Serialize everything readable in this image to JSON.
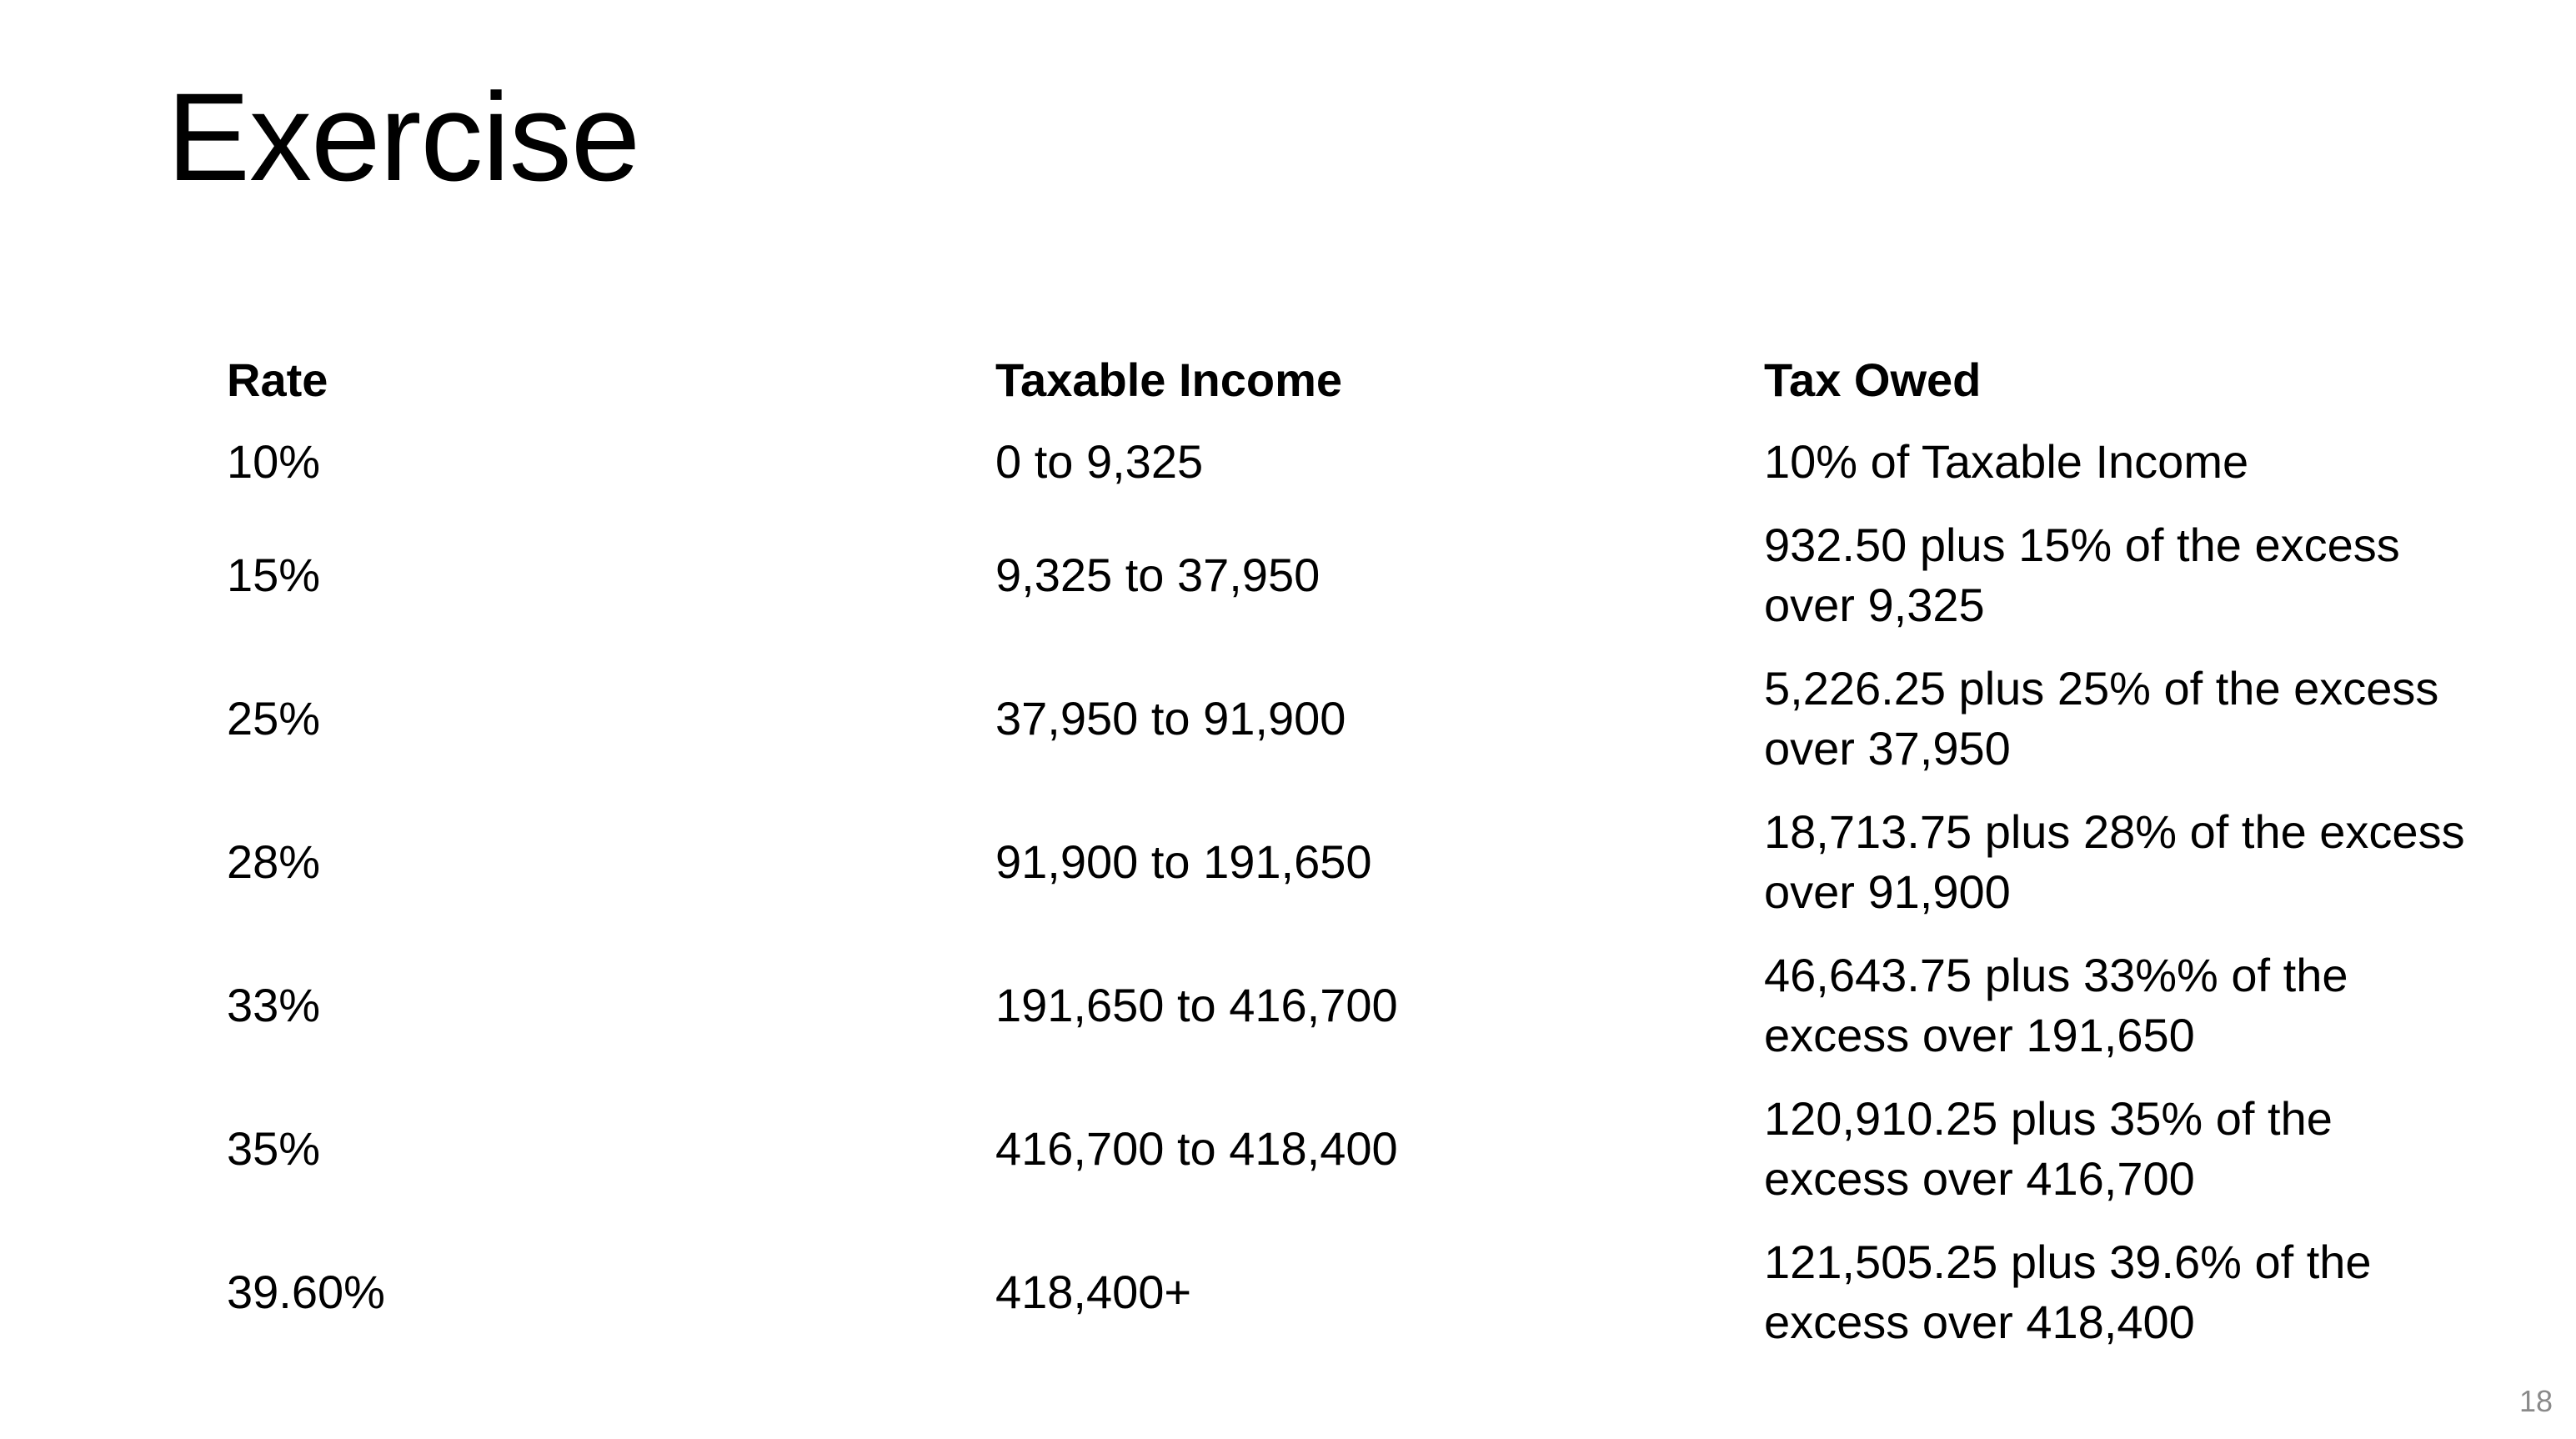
{
  "slide": {
    "title": "Exercise",
    "page_number": "18"
  },
  "table": {
    "headers": [
      "Rate",
      "Taxable Income",
      "Tax Owed"
    ],
    "rows": [
      {
        "rate": "10%",
        "income": "0 to 9,325",
        "owed": "10% of Taxable Income"
      },
      {
        "rate": "15%",
        "income": "9,325 to 37,950",
        "owed": "932.50 plus 15% of the excess over 9,325"
      },
      {
        "rate": "25%",
        "income": "37,950 to 91,900",
        "owed": "5,226.25 plus 25% of the excess over 37,950"
      },
      {
        "rate": "28%",
        "income": "91,900 to 191,650",
        "owed": "18,713.75 plus 28% of the excess over 91,900"
      },
      {
        "rate": "33%",
        "income": "191,650 to 416,700",
        "owed": "46,643.75 plus 33%% of the excess over 191,650"
      },
      {
        "rate": "35%",
        "income": "416,700 to 418,400",
        "owed": "120,910.25 plus 35% of the excess over 416,700"
      },
      {
        "rate": "39.60%",
        "income": "418,400+",
        "owed": "121,505.25 plus 39.6% of the excess over 418,400"
      }
    ]
  }
}
